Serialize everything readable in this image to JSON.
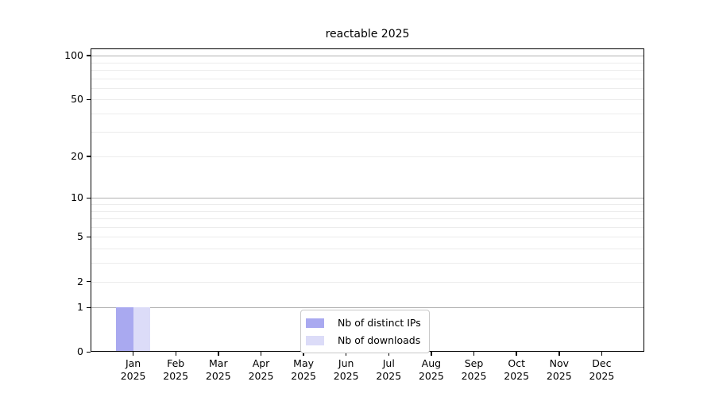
{
  "chart_data": {
    "type": "bar",
    "title": "reactable 2025",
    "categories": [
      "Jan",
      "Feb",
      "Mar",
      "Apr",
      "May",
      "Jun",
      "Jul",
      "Aug",
      "Sep",
      "Oct",
      "Nov",
      "Dec"
    ],
    "category_year": "2025",
    "series": [
      {
        "name": "Nb of distinct IPs",
        "color": "#a9a9f0",
        "values": [
          1,
          0,
          0,
          0,
          0,
          0,
          0,
          0,
          0,
          0,
          0,
          0
        ]
      },
      {
        "name": "Nb of downloads",
        "color": "#dcdcf8",
        "values": [
          1,
          0,
          0,
          0,
          0,
          0,
          0,
          0,
          0,
          0,
          0,
          0
        ]
      }
    ],
    "yscale": "log1p",
    "ylim": [
      0,
      112
    ],
    "y_ticks": [
      0,
      1,
      2,
      5,
      10,
      20,
      50,
      100
    ],
    "y_minor_ticks": [
      3,
      4,
      6,
      7,
      8,
      9,
      30,
      40,
      60,
      70,
      80,
      90
    ],
    "grid": true,
    "legend_position": "lower center",
    "grid_major_color": "#b0b0b0",
    "grid_minor_color": "#ececec"
  }
}
